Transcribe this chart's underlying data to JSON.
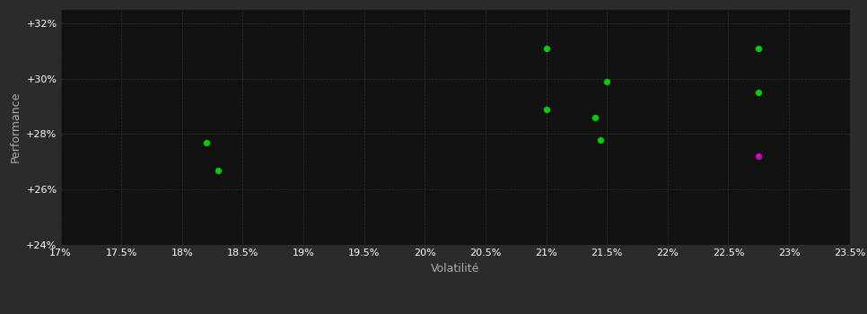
{
  "background_color": "#2b2b2b",
  "plot_bg_color": "#111111",
  "grid_color": "#333333",
  "xlabel": "Volatilité",
  "ylabel": "Performance",
  "xlim": [
    0.17,
    0.235
  ],
  "ylim": [
    0.24,
    0.325
  ],
  "xticks": [
    0.17,
    0.175,
    0.18,
    0.185,
    0.19,
    0.195,
    0.2,
    0.205,
    0.21,
    0.215,
    0.22,
    0.225,
    0.23,
    0.235
  ],
  "yticks": [
    0.24,
    0.26,
    0.28,
    0.3,
    0.32
  ],
  "green_points": [
    [
      0.182,
      0.277
    ],
    [
      0.183,
      0.267
    ],
    [
      0.21,
      0.289
    ],
    [
      0.214,
      0.286
    ],
    [
      0.2145,
      0.278
    ],
    [
      0.21,
      0.311
    ],
    [
      0.215,
      0.299
    ],
    [
      0.2275,
      0.311
    ],
    [
      0.2275,
      0.295
    ]
  ],
  "magenta_points": [
    [
      0.2275,
      0.272
    ]
  ],
  "green_color": "#00cc00",
  "magenta_color": "#cc00cc",
  "marker_size": 28,
  "tick_color": "#ffffff",
  "label_color": "#aaaaaa",
  "tick_fontsize": 8,
  "label_fontsize": 9
}
